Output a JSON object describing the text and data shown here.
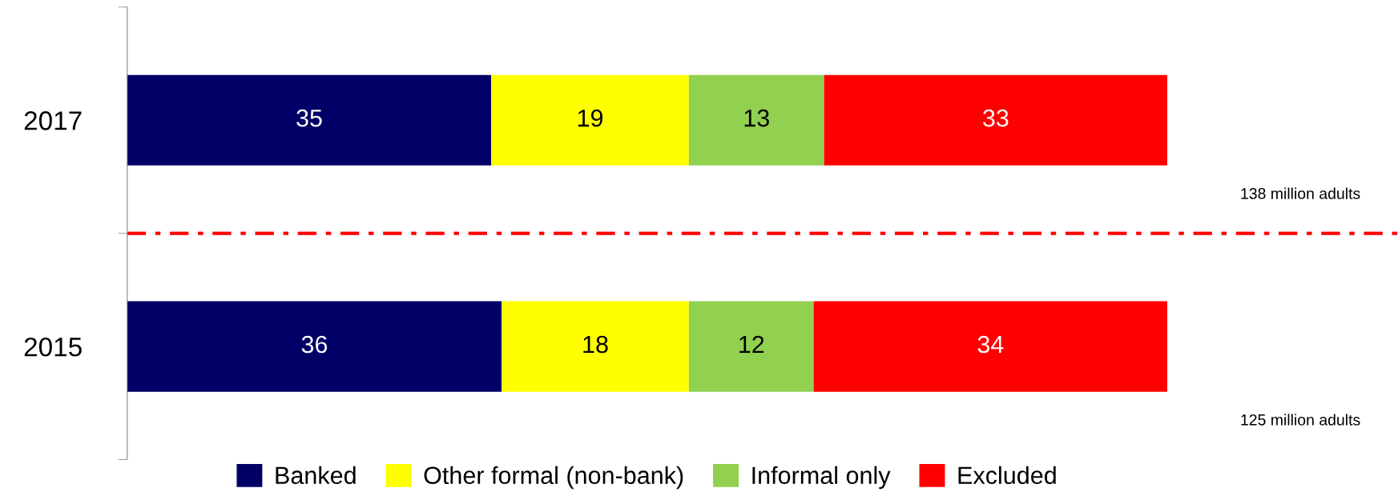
{
  "chart_data": {
    "type": "bar",
    "orientation": "horizontal",
    "stacked": true,
    "categories": [
      "2017",
      "2015"
    ],
    "series": [
      {
        "name": "Banked",
        "color": "#000066",
        "values": [
          35,
          36
        ]
      },
      {
        "name": "Other formal (non-bank)",
        "color": "#ffff00",
        "values": [
          19,
          18
        ]
      },
      {
        "name": "Informal only",
        "color": "#92d050",
        "values": [
          13,
          12
        ]
      },
      {
        "name": "Excluded",
        "color": "#ff0000",
        "values": [
          33,
          34
        ]
      }
    ],
    "xlim": [
      0,
      100
    ],
    "tick_labels": "y",
    "data_labels": true,
    "legend": "bottom",
    "grid": false,
    "annotations": [
      "138 million adults",
      "125 million adults"
    ]
  }
}
